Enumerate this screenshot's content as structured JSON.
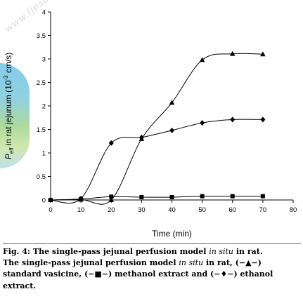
{
  "watermark": "www.ijpsonline.com",
  "chart_data": {
    "type": "line",
    "title": "",
    "xlabel": "Time (min)",
    "ylabel": {
      "prefix": "P",
      "sub": "eff",
      "mid": " in rat jejunum (10",
      "sup": "-3",
      "suffix": " cm/s)"
    },
    "xlim": [
      0,
      80
    ],
    "ylim": [
      0,
      4
    ],
    "xticks": [
      "0",
      "10",
      "20",
      "30",
      "40",
      "50",
      "60",
      "70",
      "80"
    ],
    "yticks": [
      "0",
      "0.5",
      "1",
      "1.5",
      "2",
      "2.5",
      "3",
      "3.5",
      "4"
    ],
    "grid": false,
    "series": [
      {
        "marker": "triangle",
        "x": [
          0,
          10,
          20,
          30,
          40,
          50,
          60,
          70
        ],
        "y": [
          0.0,
          0.01,
          0.0,
          1.3,
          2.07,
          2.98,
          3.11,
          3.1
        ]
      },
      {
        "marker": "square",
        "x": [
          0,
          10,
          20,
          30,
          40,
          50,
          60,
          70
        ],
        "y": [
          0.0,
          0.02,
          0.07,
          0.06,
          0.06,
          0.08,
          0.08,
          0.08
        ]
      },
      {
        "marker": "diamond",
        "x": [
          0,
          10,
          20,
          30,
          40,
          50,
          60,
          70
        ],
        "y": [
          0.0,
          0.03,
          1.21,
          1.33,
          1.48,
          1.64,
          1.71,
          1.71
        ]
      }
    ]
  },
  "caption": {
    "fig_prefix": "Fig. 4: The single-pass jejunal perfusion model ",
    "fig_italic": "in situ",
    "fig_suffix": " in rat.",
    "body_prefix": "The single-pass jejunal perfusion model ",
    "body_italic": "in situ",
    "body_mid1": " in rat, (−▲−) standard vasicine, (−■−) methanol extract and (−♦−) ethanol extract."
  }
}
